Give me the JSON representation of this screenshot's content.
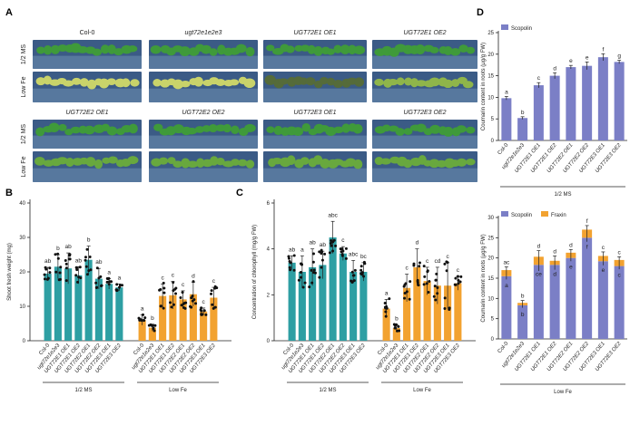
{
  "panels": {
    "A": "A",
    "B": "B",
    "C": "C",
    "D": "D"
  },
  "photo_panel": {
    "conditions": [
      "1/2 MS",
      "Low Fe",
      "1/2 MS",
      "Low Fe"
    ],
    "top_titles": [
      "Col-0",
      "ugt72e1e2e3",
      "UGT72E1 OE1",
      "UGT72E1 OE2"
    ],
    "bottom_titles": [
      "UGT72E2 OE1",
      "UGT72E2 OE2",
      "UGT72E3 OE1",
      "UGT72E3 OE2"
    ]
  },
  "genotypes": [
    "Col-0",
    "ugt72e1e2e3",
    "UGT72E1 OE1",
    "UGT72E1 OE2",
    "UGT72E2 OE1",
    "UGT72E2 OE2",
    "UGT72E3 OE1",
    "UGT72E3 OE2"
  ],
  "group_labels": {
    "ms": "1/2 MS",
    "lowfe": "Low Fe"
  },
  "colors": {
    "ms": "#2e9fa3",
    "lowfe": "#f2a230",
    "scopolin": "#7b7fc6",
    "fraxin": "#f2a230",
    "dots": "#111111"
  },
  "chart_data": [
    {
      "id": "B",
      "type": "bar",
      "ylabel": "Shoot fresh weight (mg)",
      "ylim": [
        0,
        40
      ],
      "yticks": [
        0,
        10,
        20,
        30,
        40
      ],
      "groups": [
        {
          "name": "1/2 MS",
          "values": [
            19.5,
            21.5,
            21.0,
            19.0,
            23.5,
            18.0,
            16.5,
            15.5
          ],
          "errors": [
            1.8,
            3.5,
            4.5,
            2.5,
            4.0,
            3.0,
            1.5,
            1.0
          ],
          "letters": [
            "ab",
            "b",
            "ab",
            "ab",
            "b",
            "ab",
            "a",
            "a"
          ]
        },
        {
          "name": "Low Fe",
          "values": [
            6.0,
            3.8,
            13.0,
            13.2,
            12.0,
            13.5,
            8.5,
            12.5
          ],
          "errors": [
            1.5,
            1.0,
            3.5,
            4.0,
            2.5,
            3.5,
            1.0,
            3.0
          ],
          "letters": [
            "a",
            "b",
            "c",
            "c",
            "c",
            "d",
            "c",
            "c"
          ]
        }
      ]
    },
    {
      "id": "C",
      "type": "bar",
      "ylabel": "Concentration of chlorophyll (mg/g FW)",
      "ylim": [
        0,
        6
      ],
      "yticks": [
        0,
        2,
        4,
        6
      ],
      "groups": [
        {
          "name": "1/2 MS",
          "values": [
            3.4,
            3.0,
            3.2,
            3.3,
            4.5,
            3.8,
            3.0,
            3.0
          ],
          "errors": [
            0.3,
            0.7,
            0.8,
            0.6,
            0.7,
            0.3,
            0.5,
            0.4
          ],
          "letters": [
            "ab",
            "a",
            "ab",
            "ab",
            "abc",
            "c",
            "abc",
            "bc"
          ]
        },
        {
          "name": "Low Fe",
          "values": [
            1.4,
            0.55,
            2.3,
            3.2,
            2.6,
            2.4,
            2.4,
            2.5
          ],
          "errors": [
            0.4,
            0.15,
            0.6,
            0.8,
            0.6,
            0.8,
            1.0,
            0.3
          ],
          "letters": [
            "a",
            "b",
            "c",
            "d",
            "c",
            "cd",
            "c",
            "c"
          ]
        }
      ]
    },
    {
      "id": "D-top",
      "type": "bar",
      "ylabel": "Coumarin content in roots (μg/g FW)",
      "legend": [
        "Scopolin"
      ],
      "ylim": [
        0,
        25
      ],
      "yticks": [
        0,
        5,
        10,
        15,
        20,
        25
      ],
      "group": "1/2 MS",
      "values": [
        9.8,
        5.2,
        12.8,
        15.0,
        17.0,
        17.3,
        19.3,
        18.2
      ],
      "errors": [
        0.4,
        0.3,
        0.6,
        0.7,
        0.4,
        0.9,
        0.8,
        0.4
      ],
      "letters": [
        "a",
        "b",
        "c",
        "d",
        "e",
        "e",
        "f",
        "g"
      ]
    },
    {
      "id": "D-bottom",
      "type": "bar",
      "ylabel": "Coumarin content in roots (μg/g FW)",
      "legend": [
        "Scopolin",
        "Fraxin"
      ],
      "ylim": [
        0,
        30
      ],
      "yticks": [
        0,
        5,
        10,
        15,
        20,
        25,
        30
      ],
      "group": "Low Fe",
      "scopolin": [
        15.5,
        8.3,
        18.3,
        18.3,
        20.0,
        25.0,
        19.2,
        18.0
      ],
      "fraxin": [
        1.5,
        0.6,
        2.0,
        1.0,
        1.3,
        2.0,
        1.3,
        1.5
      ],
      "errors": [
        0.8,
        0.6,
        1.5,
        1.2,
        0.8,
        1.0,
        1.0,
        0.8
      ],
      "top_letters": [
        "ac",
        "b",
        "d",
        "d",
        "d",
        "f",
        "c",
        "c"
      ],
      "inner_letters": [
        "a",
        "b",
        "ce",
        "d",
        "e",
        "f",
        "e",
        "c"
      ]
    }
  ]
}
